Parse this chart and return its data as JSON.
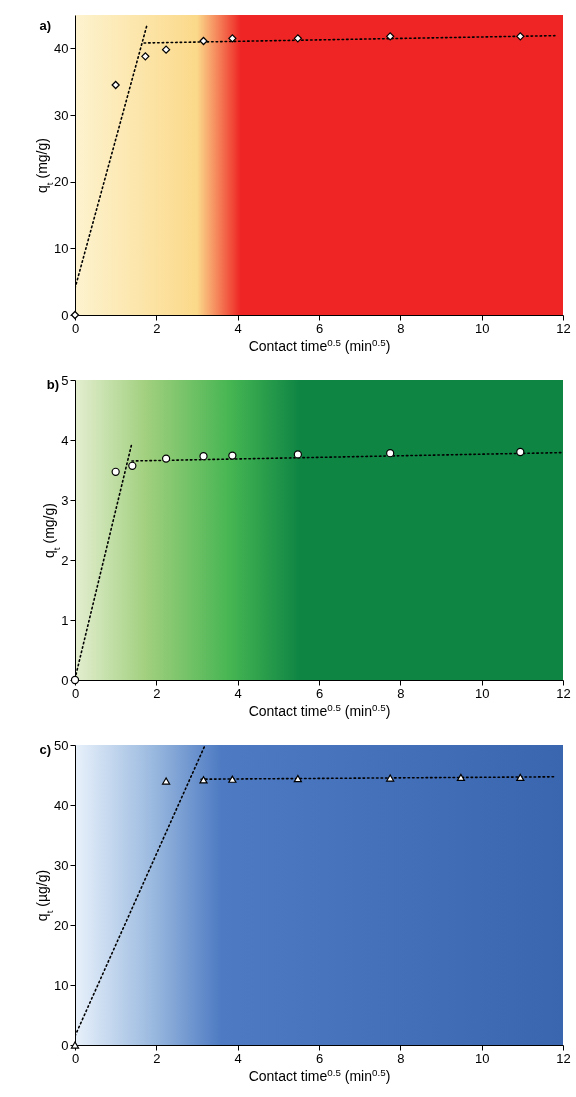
{
  "chart_data": [
    {
      "type": "scatter",
      "title": "a)",
      "xlabel": "Contact time$^{0.5}$ (min$^{0.5}$)",
      "ylabel": "q$_{t}$ (mg/g)",
      "xlim": [
        0,
        12
      ],
      "xticks": [
        0,
        2,
        4,
        6,
        8,
        10,
        12
      ],
      "ylim": [
        0,
        45
      ],
      "yticks": [
        0,
        10,
        20,
        30,
        40
      ],
      "series": [
        {
          "type": "line",
          "color": "#000000",
          "line_style": "dotted",
          "x": [
            0,
            1.77
          ],
          "values": [
            4,
            43.5
          ]
        },
        {
          "type": "line",
          "color": "#000000",
          "line_style": "dotted",
          "x": [
            1.7,
            11.8
          ],
          "values": [
            40.8,
            41.9
          ]
        },
        {
          "type": "scatter",
          "marker": "diamond",
          "color": "#ffffff",
          "x": [
            0,
            1,
            1.73,
            2.24,
            3.16,
            3.87,
            5.48,
            7.75,
            10.95
          ],
          "values": [
            0,
            34.5,
            38.8,
            39.8,
            41.1,
            41.5,
            41.5,
            41.8,
            41.8
          ]
        }
      ]
    },
    {
      "type": "scatter",
      "title": "b)",
      "xlabel": "Contact time$^{0.5}$ (min$^{0.5}$)",
      "ylabel": "q$_{t}$ (mg/g)",
      "xlim": [
        0,
        12
      ],
      "xticks": [
        0,
        2,
        4,
        6,
        8,
        10,
        12
      ],
      "ylim": [
        0,
        5
      ],
      "yticks": [
        0,
        1,
        2,
        3,
        4,
        5
      ],
      "series": [
        {
          "type": "line",
          "color": "#000000",
          "line_style": "dotted",
          "x": [
            0,
            1.4
          ],
          "values": [
            0.02,
            3.95
          ]
        },
        {
          "type": "line",
          "color": "#000000",
          "line_style": "dotted",
          "x": [
            1.4,
            12
          ],
          "values": [
            3.65,
            3.79
          ]
        },
        {
          "type": "scatter",
          "marker": "circle",
          "color": "#ffffff",
          "x": [
            0,
            1,
            1.41,
            2.24,
            3.16,
            3.87,
            5.48,
            7.75,
            10.95
          ],
          "values": [
            0,
            3.47,
            3.57,
            3.69,
            3.73,
            3.74,
            3.76,
            3.78,
            3.8
          ]
        }
      ]
    },
    {
      "type": "scatter",
      "title": "c)",
      "xlabel": "Contact time$^{0.5}$ (min$^{0.5}$)",
      "ylabel": "q$_{t}$ (µg/g)",
      "xlim": [
        0,
        12
      ],
      "xticks": [
        0,
        2,
        4,
        6,
        8,
        10,
        12
      ],
      "ylim": [
        0,
        50
      ],
      "yticks": [
        0,
        10,
        20,
        30,
        40,
        50
      ],
      "series": [
        {
          "type": "line",
          "color": "#000000",
          "line_style": "dotted",
          "x": [
            0,
            3.2
          ],
          "values": [
            1.5,
            50
          ]
        },
        {
          "type": "line",
          "color": "#000000",
          "line_style": "dotted",
          "x": [
            3.1,
            11.8
          ],
          "values": [
            44.3,
            44.7
          ]
        },
        {
          "type": "scatter",
          "marker": "triangle",
          "color": "#ffffff",
          "x": [
            0,
            2.24,
            3.16,
            3.87,
            5.48,
            7.75,
            9.49,
            10.95
          ],
          "values": [
            0,
            44,
            44.2,
            44.3,
            44.4,
            44.5,
            44.6,
            44.6
          ]
        }
      ]
    }
  ]
}
